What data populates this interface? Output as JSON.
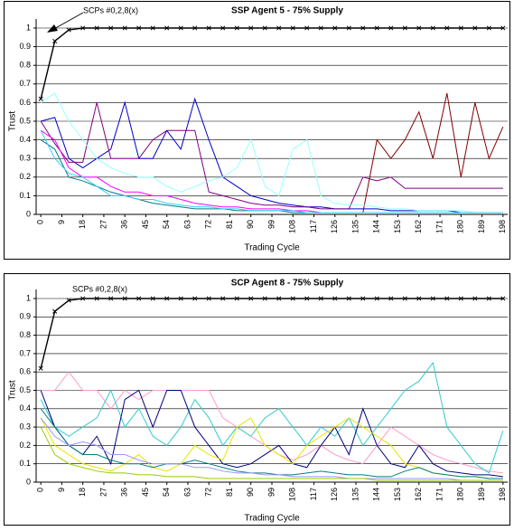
{
  "chart_data": [
    {
      "type": "line",
      "title": "SSP Agent 5 - 75% Supply",
      "annotation": "SCPs #0,2,8(x)",
      "ylabel": "Trust",
      "xlabel": "Trading Cycle",
      "xlim": [
        -2,
        200
      ],
      "ylim": [
        0,
        1
      ],
      "yticks": [
        0,
        0.1,
        0.2,
        0.3,
        0.4,
        0.5,
        0.6,
        0.7,
        0.8,
        0.9,
        1
      ],
      "xticks": [
        0,
        9,
        18,
        27,
        36,
        45,
        54,
        63,
        72,
        81,
        90,
        99,
        108,
        117,
        126,
        135,
        144,
        153,
        162,
        171,
        180,
        189,
        198
      ],
      "grid": true,
      "x": [
        0,
        6,
        12,
        18,
        24,
        30,
        36,
        42,
        48,
        54,
        60,
        66,
        72,
        78,
        84,
        90,
        96,
        102,
        108,
        114,
        120,
        126,
        132,
        138,
        144,
        150,
        156,
        162,
        168,
        174,
        180,
        186,
        192,
        198
      ],
      "series": [
        {
          "color": "#000000",
          "marker": "x",
          "values": [
            0.62,
            0.93,
            0.99,
            1,
            1,
            1,
            1,
            1,
            1,
            1,
            1,
            1,
            1,
            1,
            1,
            1,
            1,
            1,
            1,
            1,
            1,
            1,
            1,
            1,
            1,
            1,
            1,
            1,
            1,
            1,
            1,
            1,
            1,
            1
          ]
        },
        {
          "color": "#0000cc",
          "values": [
            0.5,
            0.52,
            0.3,
            0.25,
            0.3,
            0.35,
            0.6,
            0.3,
            0.3,
            0.45,
            0.35,
            0.62,
            0.4,
            0.2,
            0.15,
            0.1,
            0.08,
            0.06,
            0.05,
            0.04,
            0.04,
            0.03,
            0.03,
            0.03,
            0.03,
            0.02,
            0.02,
            0.02,
            0.02,
            0.02,
            0.01,
            0.01,
            0.01,
            0.01
          ]
        },
        {
          "color": "#800080",
          "values": [
            0.5,
            0.38,
            0.28,
            0.28,
            0.6,
            0.3,
            0.3,
            0.3,
            0.4,
            0.45,
            0.45,
            0.45,
            0.12,
            0.1,
            0.08,
            0.06,
            0.05,
            0.05,
            0.04,
            0.04,
            0.03,
            0.03,
            0.03,
            0.2,
            0.18,
            0.2,
            0.14,
            0.14,
            0.14,
            0.14,
            0.14,
            0.14,
            0.14,
            0.14
          ]
        },
        {
          "color": "#800000",
          "values": [
            null,
            null,
            null,
            null,
            null,
            null,
            null,
            null,
            null,
            null,
            null,
            null,
            null,
            null,
            null,
            null,
            null,
            null,
            null,
            null,
            null,
            null,
            null,
            0.01,
            0.4,
            0.3,
            0.4,
            0.55,
            0.3,
            0.65,
            0.2,
            0.6,
            0.3,
            0.47
          ]
        },
        {
          "color": "#99ffff",
          "values": [
            0.6,
            0.65,
            0.5,
            0.4,
            0.3,
            0.25,
            0.22,
            0.2,
            0.2,
            0.15,
            0.12,
            0.15,
            0.18,
            0.2,
            0.25,
            0.4,
            0.15,
            0.1,
            0.35,
            0.4,
            0.1,
            0.06,
            0.05,
            0.05,
            0.04,
            0.03,
            0.03,
            0.02,
            0.02,
            0.02,
            0.02,
            0.01,
            0.01,
            0.01
          ]
        },
        {
          "color": "#ff00ff",
          "values": [
            0.45,
            0.4,
            0.25,
            0.2,
            0.2,
            0.15,
            0.12,
            0.12,
            0.1,
            0.1,
            0.08,
            0.06,
            0.05,
            0.04,
            0.04,
            0.03,
            0.03,
            0.03,
            0.02,
            0.02,
            0.01,
            0.01,
            0.01,
            0.01,
            0.01,
            0.01,
            0.01,
            0.01,
            0.01,
            0.01,
            0.01,
            0.01,
            0.01,
            0.01
          ]
        },
        {
          "color": "#008080",
          "values": [
            0.4,
            0.35,
            0.2,
            0.18,
            0.15,
            0.12,
            0.1,
            0.08,
            0.06,
            0.05,
            0.04,
            0.03,
            0.03,
            0.03,
            0.02,
            0.02,
            0.02,
            0.02,
            0.01,
            0.01,
            0.01,
            0.01,
            0.01,
            0.01,
            0.01,
            0.01,
            0.01,
            0.01,
            0.01,
            0.01,
            0.01,
            0.01,
            0.01,
            0.01
          ]
        },
        {
          "color": "#33ccff",
          "values": [
            0.45,
            0.3,
            0.22,
            0.2,
            0.15,
            0.1,
            0.1,
            0.08,
            0.08,
            0.06,
            0.05,
            0.04,
            0.04,
            0.03,
            0.03,
            0.02,
            0.02,
            0.02,
            0.02,
            0.01,
            0.01,
            0.01,
            0.01,
            0.01,
            0.01,
            0.01,
            0.01,
            0.01,
            0.01,
            0.01,
            0.01,
            0.01,
            0.01,
            0.01
          ]
        }
      ]
    },
    {
      "type": "line",
      "title": "SCP Agent 8 - 75% Supply",
      "annotation": "SCPs #0,2,8(x)",
      "ylabel": "Trust",
      "xlabel": "Trading Cycle",
      "xlim": [
        -2,
        200
      ],
      "ylim": [
        0,
        1
      ],
      "yticks": [
        0,
        0.1,
        0.2,
        0.3,
        0.4,
        0.5,
        0.6,
        0.7,
        0.8,
        0.9,
        1
      ],
      "xticks": [
        0,
        9,
        18,
        27,
        36,
        45,
        54,
        63,
        72,
        81,
        90,
        99,
        108,
        117,
        126,
        135,
        144,
        153,
        162,
        171,
        180,
        189,
        198
      ],
      "grid": true,
      "x": [
        0,
        6,
        12,
        18,
        24,
        30,
        36,
        42,
        48,
        54,
        60,
        66,
        72,
        78,
        84,
        90,
        96,
        102,
        108,
        114,
        120,
        126,
        132,
        138,
        144,
        150,
        156,
        162,
        168,
        174,
        180,
        186,
        192,
        198
      ],
      "series": [
        {
          "color": "#000000",
          "marker": "x",
          "values": [
            0.62,
            0.93,
            0.99,
            1,
            1,
            1,
            1,
            1,
            1,
            1,
            1,
            1,
            1,
            1,
            1,
            1,
            1,
            1,
            1,
            1,
            1,
            1,
            1,
            1,
            1,
            1,
            1,
            1,
            1,
            1,
            1,
            1,
            1,
            1
          ]
        },
        {
          "color": "#ff99cc",
          "values": [
            0.5,
            0.5,
            0.6,
            0.5,
            0.5,
            0.4,
            0.5,
            0.45,
            0.5,
            0.5,
            0.5,
            0.5,
            0.5,
            0.35,
            0.3,
            0.25,
            0.2,
            0.15,
            0.12,
            0.15,
            0.2,
            0.15,
            0.12,
            0.1,
            0.2,
            0.3,
            0.25,
            0.2,
            0.15,
            0.12,
            0.1,
            0.08,
            0.06,
            0.05
          ]
        },
        {
          "color": "#33cccc",
          "values": [
            0.45,
            0.3,
            0.25,
            0.3,
            0.35,
            0.5,
            0.3,
            0.4,
            0.25,
            0.2,
            0.3,
            0.45,
            0.35,
            0.2,
            0.3,
            0.25,
            0.35,
            0.4,
            0.3,
            0.2,
            0.3,
            0.25,
            0.35,
            0.2,
            0.3,
            0.4,
            0.5,
            0.55,
            0.65,
            0.3,
            0.2,
            0.1,
            0.05,
            0.28
          ]
        },
        {
          "color": "#000080",
          "values": [
            0.5,
            0.3,
            0.2,
            0.15,
            0.25,
            0.1,
            0.45,
            0.5,
            0.3,
            0.5,
            0.5,
            0.3,
            0.2,
            0.1,
            0.08,
            0.1,
            0.15,
            0.2,
            0.1,
            0.08,
            0.2,
            0.3,
            0.15,
            0.4,
            0.2,
            0.1,
            0.08,
            0.2,
            0.1,
            0.06,
            0.05,
            0.04,
            0.04,
            0.03
          ]
        },
        {
          "color": "#e6e600",
          "values": [
            0.35,
            0.2,
            0.15,
            0.1,
            0.08,
            0.06,
            0.1,
            0.15,
            0.08,
            0.06,
            0.1,
            0.2,
            0.15,
            0.12,
            0.3,
            0.35,
            0.2,
            0.15,
            0.1,
            0.2,
            0.25,
            0.3,
            0.35,
            0.3,
            0.25,
            0.2,
            0.1,
            0.08,
            0.05,
            0.04,
            0.03,
            0.03,
            0.02,
            0.02
          ]
        },
        {
          "color": "#008080",
          "values": [
            0.4,
            0.3,
            0.2,
            0.15,
            0.15,
            0.12,
            0.1,
            0.1,
            0.08,
            0.1,
            0.1,
            0.12,
            0.1,
            0.08,
            0.06,
            0.05,
            0.05,
            0.04,
            0.04,
            0.05,
            0.06,
            0.05,
            0.04,
            0.04,
            0.03,
            0.03,
            0.06,
            0.08,
            0.05,
            0.04,
            0.03,
            0.03,
            0.02,
            0.02
          ]
        },
        {
          "color": "#9999ff",
          "values": [
            0.35,
            0.25,
            0.2,
            0.22,
            0.2,
            0.15,
            0.15,
            0.12,
            0.1,
            0.1,
            0.1,
            0.08,
            0.08,
            0.06,
            0.05,
            0.05,
            0.04,
            0.04,
            0.03,
            0.03,
            0.03,
            0.03,
            0.02,
            0.02,
            0.02,
            0.02,
            0.02,
            0.02,
            0.02,
            0.02,
            0.01,
            0.01,
            0.01,
            0.01
          ]
        },
        {
          "color": "#99cc00",
          "values": [
            0.3,
            0.15,
            0.1,
            0.08,
            0.06,
            0.05,
            0.05,
            0.04,
            0.04,
            0.03,
            0.03,
            0.03,
            0.02,
            0.02,
            0.02,
            0.02,
            0.02,
            0.02,
            0.02,
            0.02,
            0.02,
            0.02,
            0.02,
            0.02,
            0.01,
            0.01,
            0.01,
            0.01,
            0.01,
            0.01,
            0.01,
            0.01,
            0.01,
            0.01
          ]
        }
      ]
    }
  ]
}
